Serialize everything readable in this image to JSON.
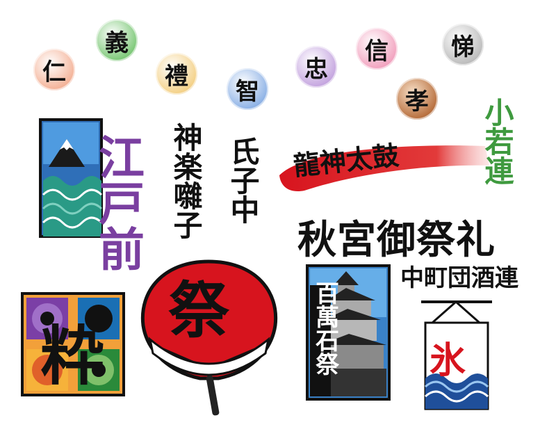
{
  "virtues": [
    "仁",
    "義",
    "禮",
    "智",
    "忠",
    "信",
    "孝",
    "悌"
  ],
  "virtue_colors": [
    "#f4b49a",
    "#7fc97a",
    "#f4d28a",
    "#8fb3e6",
    "#c6a7e0",
    "#f2a4c0",
    "#b8703f",
    "#bdbdbd"
  ],
  "edomae": {
    "text": "江戸前",
    "color": "#7a3fa0"
  },
  "kagura": "神楽囃子",
  "ujiko": "氏子中",
  "ryujin": "龍神太鼓",
  "kowakaren": {
    "text": "小若連",
    "color": "#3f9a3f"
  },
  "akimiya": "秋宮御祭礼",
  "nakamachi": "中町団酒連",
  "iki": "粋",
  "matsuri": "祭",
  "hyakumangoku": "百萬石祭",
  "kori": "氷",
  "accent_red": "#d7141e"
}
